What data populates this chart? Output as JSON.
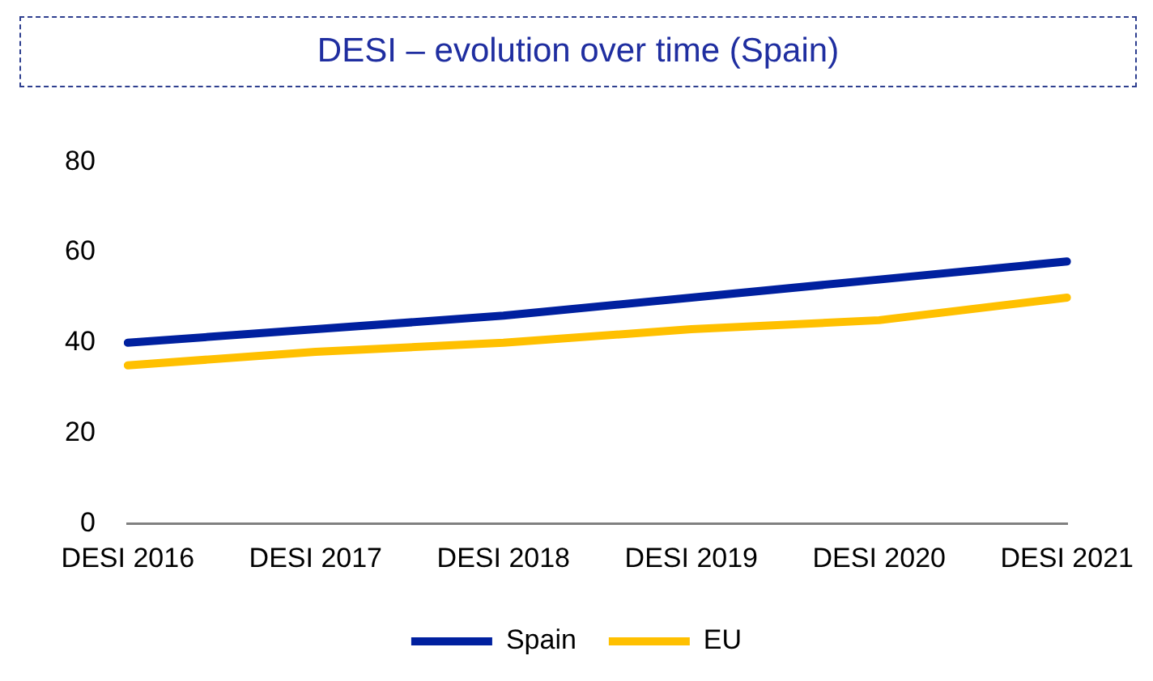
{
  "chart_data": {
    "type": "line",
    "title": "DESI – evolution over time (Spain)",
    "categories": [
      "DESI 2016",
      "DESI 2017",
      "DESI 2018",
      "DESI 2019",
      "DESI 2020",
      "DESI 2021"
    ],
    "series": [
      {
        "name": "Spain",
        "color": "#00209f",
        "values": [
          40,
          43,
          46,
          50,
          54,
          58
        ]
      },
      {
        "name": "EU",
        "color": "#ffc000",
        "values": [
          35,
          38,
          40,
          43,
          45,
          50
        ]
      }
    ],
    "ylim": [
      0,
      80
    ],
    "yticks": [
      0,
      20,
      40,
      60,
      80
    ],
    "grid": false,
    "legend": "bottom",
    "marker": "none",
    "line_style": "solid"
  }
}
